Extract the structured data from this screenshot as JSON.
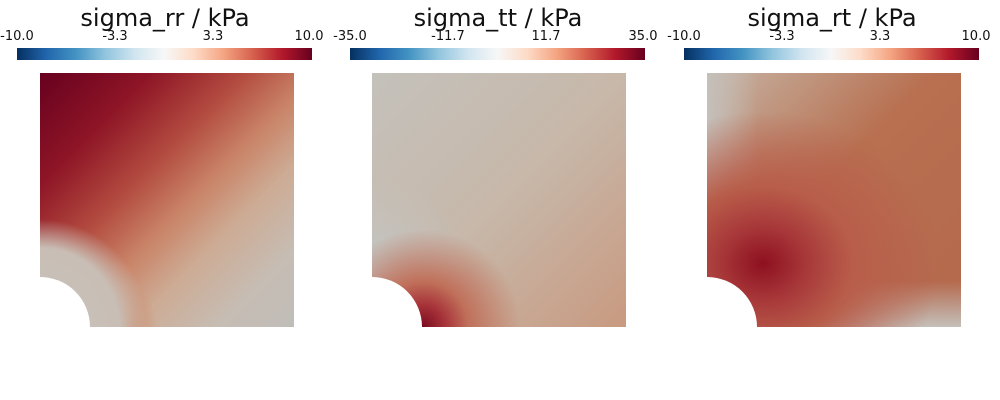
{
  "chart_data": [
    {
      "type": "heatmap",
      "title": "sigma_rr / kPa",
      "colorbar": {
        "range": [
          -10.0,
          10.0
        ],
        "ticks": [
          "-10.0",
          "-3.3",
          "3.3",
          "10.0"
        ],
        "colormap": "blue-white-red"
      }
    },
    {
      "type": "heatmap",
      "title": "sigma_tt / kPa",
      "colorbar": {
        "range": [
          -35.0,
          35.0
        ],
        "ticks": [
          "-35.0",
          "-11.7",
          "11.7",
          "35.0"
        ],
        "colormap": "blue-white-red"
      }
    },
    {
      "type": "heatmap",
      "title": "sigma_rt / kPa",
      "colorbar": {
        "range": [
          -10.0,
          10.0
        ],
        "ticks": [
          "-10.0",
          "-3.3",
          "3.3",
          "10.0"
        ],
        "colormap": "blue-white-red"
      }
    }
  ]
}
